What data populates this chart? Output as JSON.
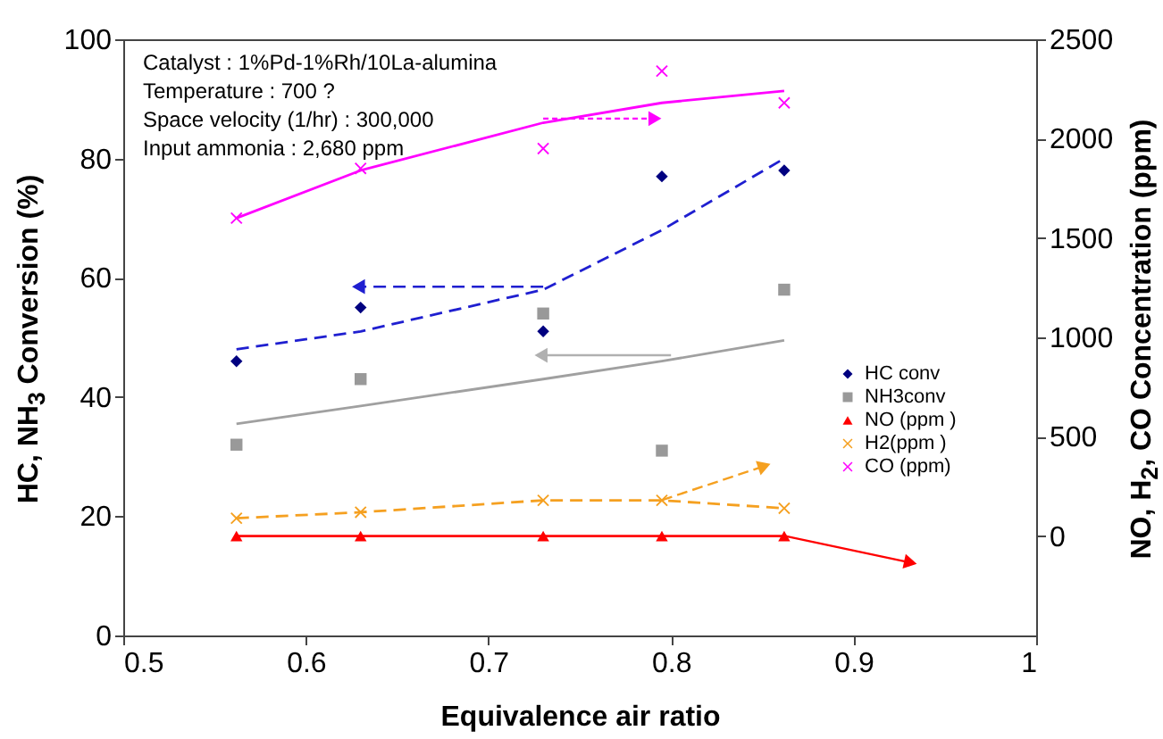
{
  "chart_data": {
    "type": "scatter",
    "xlabel": "Equivalence air ratio",
    "ylabel": "HC, NH$_{3}$ Conversion (%)",
    "y2label": "NO, H$_{2}$, CO Concentration (ppm)",
    "annotations": [
      "Catalyst : 1%Pd-1%Rh/10La-alumina",
      "Temperature : 700 ?",
      "Space velocity (1/hr) : 300,000",
      "Input ammonia : 2,680 ppm"
    ],
    "x": [
      0.562,
      0.63,
      0.73,
      0.795,
      0.862
    ],
    "xlim": [
      0.5,
      1
    ],
    "xticks": [
      0.5,
      0.6,
      0.7,
      0.8,
      0.9,
      1
    ],
    "ylim": [
      0,
      100
    ],
    "yticks": [
      0,
      20,
      40,
      60,
      80,
      100
    ],
    "y2lim": [
      -500,
      2500
    ],
    "y2ticks": [
      0,
      500,
      1000,
      1500,
      2000,
      2500
    ],
    "grid": false,
    "legend": "right",
    "series": [
      {
        "name": "HC  conv",
        "marker": "diamond",
        "color": "#000080",
        "values": [
          46,
          55,
          51,
          77,
          78
        ]
      },
      {
        "name": "NH3conv",
        "marker": "square",
        "color": "#999999",
        "values": [
          32,
          43,
          54,
          31,
          58
        ]
      },
      {
        "name": "NO (ppm )",
        "type": "line",
        "marker": "triangle",
        "line_style": "solid",
        "axis": "y2",
        "color": "#ff0000",
        "values": [
          0,
          0,
          0,
          0,
          0
        ]
      },
      {
        "name": "H2(ppm  )",
        "type": "line",
        "marker": "cross",
        "line_style": "dashed",
        "axis": "y2",
        "color": "#f5a020",
        "values": [
          90,
          120,
          180,
          180,
          140
        ]
      },
      {
        "name": "CO (ppm)",
        "marker": "cross",
        "axis": "y2",
        "color": "#ff00ff",
        "values": [
          1600,
          1850,
          1950,
          2340,
          2180
        ]
      },
      {
        "type": "line",
        "marker": "none",
        "line_style": "dashed",
        "color": "#1f1fd0",
        "values": [
          48,
          51,
          58,
          68,
          80
        ]
      },
      {
        "type": "line",
        "marker": "none",
        "line_style": "solid",
        "color": "#a0a0a0",
        "values": [
          35.5,
          38.5,
          43,
          46,
          49.5
        ]
      },
      {
        "type": "line",
        "marker": "none",
        "line_style": "solid",
        "axis": "y2",
        "color": "#ff00ff",
        "values": [
          1600,
          1840,
          2080,
          2180,
          2240
        ]
      }
    ]
  }
}
